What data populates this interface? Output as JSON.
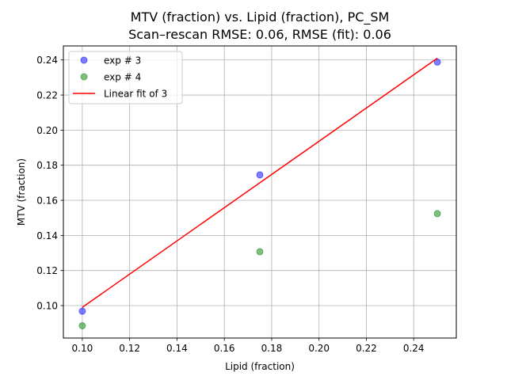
{
  "chart_data": {
    "type": "scatter",
    "title_line1": "MTV (fraction) vs. Lipid (fraction), PC_SM",
    "title_line2": "Scan–rescan RMSE: 0.06, RMSE (fit): 0.06",
    "xlabel": "Lipid (fraction)",
    "ylabel": "MTV (fraction)",
    "xlim": [
      0.092,
      0.258
    ],
    "ylim": [
      0.0815,
      0.248
    ],
    "xticks": [
      0.1,
      0.12,
      0.14,
      0.16,
      0.18,
      0.2,
      0.22,
      0.24
    ],
    "yticks": [
      0.1,
      0.12,
      0.14,
      0.16,
      0.18,
      0.2,
      0.22,
      0.24
    ],
    "xtick_labels": [
      "0.10",
      "0.12",
      "0.14",
      "0.16",
      "0.18",
      "0.20",
      "0.22",
      "0.24"
    ],
    "ytick_labels": [
      "0.10",
      "0.12",
      "0.14",
      "0.16",
      "0.18",
      "0.20",
      "0.22",
      "0.24"
    ],
    "grid": true,
    "legend_position": "top-left",
    "series": [
      {
        "name": "exp # 3",
        "kind": "scatter",
        "color": "#0000ff",
        "alpha": 0.5,
        "points": [
          {
            "x": 0.1,
            "y": 0.0968
          },
          {
            "x": 0.175,
            "y": 0.1745
          },
          {
            "x": 0.25,
            "y": 0.2388
          }
        ]
      },
      {
        "name": "exp # 4",
        "kind": "scatter",
        "color": "#008000",
        "alpha": 0.5,
        "points": [
          {
            "x": 0.1,
            "y": 0.0885
          },
          {
            "x": 0.175,
            "y": 0.1307
          },
          {
            "x": 0.25,
            "y": 0.1524
          }
        ]
      },
      {
        "name": "Linear fit of 3",
        "kind": "line",
        "color": "#ff0000",
        "points": [
          {
            "x": 0.1,
            "y": 0.099
          },
          {
            "x": 0.25,
            "y": 0.241
          }
        ]
      }
    ]
  }
}
